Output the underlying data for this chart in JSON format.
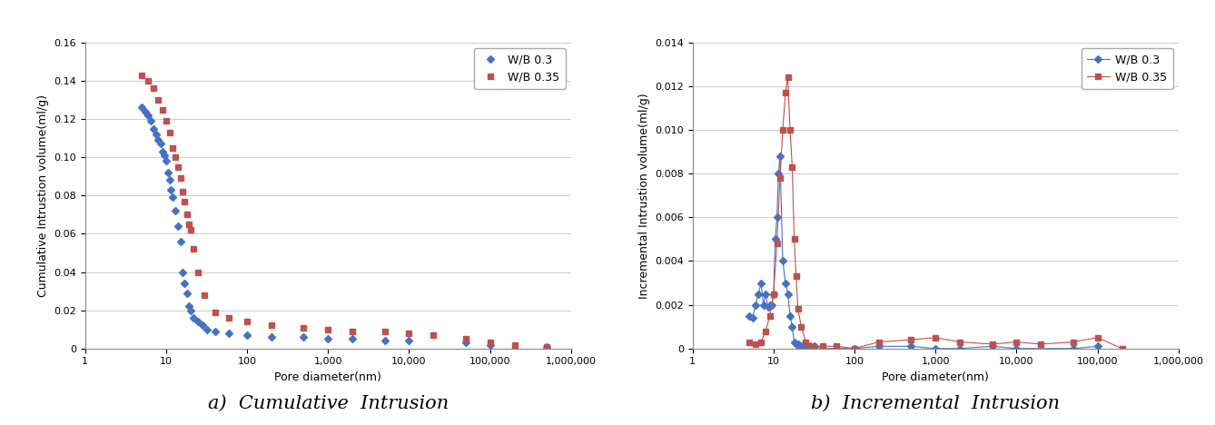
{
  "chart_a_title": "a)  Cumulative  Intrusion",
  "chart_b_title": "b)  Incremental  Intrusion",
  "xlabel": "Pore diameter(nm)",
  "ylabel_a": "Cumulative Intrustion volume(ml/g)",
  "ylabel_b": "Incremental Intrustion volume(ml/g)",
  "xlim": [
    1,
    1000000
  ],
  "ylim_a": [
    0,
    0.16
  ],
  "ylim_b": [
    0,
    0.014
  ],
  "yticks_a": [
    0,
    0.02,
    0.04,
    0.06,
    0.08,
    0.1,
    0.12,
    0.14,
    0.16
  ],
  "yticks_b": [
    0,
    0.002,
    0.004,
    0.006,
    0.008,
    0.01,
    0.012,
    0.014
  ],
  "xticks": [
    1,
    10,
    100,
    1000,
    10000,
    100000,
    1000000
  ],
  "xtick_labels": [
    "1",
    "10",
    "100",
    "1,000",
    "10,000",
    "100,000",
    "1,000,000"
  ],
  "color_03": "#4472C4",
  "color_035": "#C0504D",
  "legend_03": "W/B 0.3",
  "legend_035": "W/B 0.35",
  "wb03_cum_x": [
    5.0,
    5.5,
    6.0,
    6.5,
    7.0,
    7.5,
    8.0,
    8.5,
    9.0,
    9.5,
    10.0,
    10.5,
    11.0,
    11.5,
    12.0,
    13.0,
    14.0,
    15.0,
    16.0,
    17.0,
    18.0,
    19.0,
    20.0,
    22.0,
    25.0,
    28.0,
    32.0,
    40.0,
    60.0,
    100.0,
    200.0,
    500.0,
    1000.0,
    2000.0,
    5000.0,
    10000.0,
    50000.0,
    100000.0,
    500000.0
  ],
  "wb03_cum_y": [
    0.126,
    0.124,
    0.122,
    0.119,
    0.115,
    0.112,
    0.109,
    0.107,
    0.103,
    0.101,
    0.098,
    0.092,
    0.088,
    0.083,
    0.079,
    0.072,
    0.064,
    0.056,
    0.04,
    0.034,
    0.029,
    0.022,
    0.02,
    0.016,
    0.014,
    0.012,
    0.01,
    0.009,
    0.008,
    0.007,
    0.006,
    0.006,
    0.005,
    0.005,
    0.004,
    0.004,
    0.003,
    0.002,
    0.001
  ],
  "wb035_cum_x": [
    5.0,
    6.0,
    7.0,
    8.0,
    9.0,
    10.0,
    11.0,
    12.0,
    13.0,
    14.0,
    15.0,
    16.0,
    17.0,
    18.0,
    19.0,
    20.0,
    22.0,
    25.0,
    30.0,
    40.0,
    60.0,
    100.0,
    200.0,
    500.0,
    1000.0,
    2000.0,
    5000.0,
    10000.0,
    20000.0,
    50000.0,
    100000.0,
    200000.0,
    500000.0
  ],
  "wb035_cum_y": [
    0.143,
    0.14,
    0.136,
    0.13,
    0.125,
    0.119,
    0.113,
    0.105,
    0.1,
    0.095,
    0.089,
    0.082,
    0.077,
    0.07,
    0.065,
    0.062,
    0.052,
    0.04,
    0.028,
    0.019,
    0.016,
    0.014,
    0.012,
    0.011,
    0.01,
    0.009,
    0.009,
    0.008,
    0.007,
    0.005,
    0.003,
    0.002,
    0.001
  ],
  "wb03_inc_x": [
    5.0,
    5.5,
    6.0,
    6.5,
    7.0,
    7.5,
    8.0,
    8.5,
    9.0,
    9.5,
    10.0,
    10.5,
    11.0,
    11.5,
    12.0,
    13.0,
    14.0,
    15.0,
    16.0,
    17.0,
    18.0,
    19.0,
    20.0,
    22.0,
    25.0,
    28.0,
    32.0,
    40.0,
    60.0,
    100.0,
    200.0,
    500.0,
    1000.0,
    2000.0,
    5000.0,
    10000.0,
    50000.0,
    100000.0
  ],
  "wb03_inc_y": [
    0.0015,
    0.0014,
    0.002,
    0.0025,
    0.003,
    0.002,
    0.0025,
    0.0019,
    0.002,
    0.002,
    0.0025,
    0.005,
    0.006,
    0.008,
    0.0088,
    0.004,
    0.003,
    0.0025,
    0.0015,
    0.001,
    0.0003,
    0.0002,
    0.0002,
    0.0001,
    0.0001,
    0.0001,
    0.0001,
    0.0,
    0.0,
    0.0,
    0.0001,
    0.0001,
    0.0,
    0.0,
    0.0001,
    0.0,
    0.0,
    0.0001
  ],
  "wb035_inc_x": [
    5.0,
    6.0,
    7.0,
    8.0,
    9.0,
    10.0,
    11.0,
    12.0,
    13.0,
    14.0,
    15.0,
    16.0,
    17.0,
    18.0,
    19.0,
    20.0,
    22.0,
    25.0,
    30.0,
    40.0,
    60.0,
    100.0,
    200.0,
    500.0,
    1000.0,
    2000.0,
    5000.0,
    10000.0,
    20000.0,
    50000.0,
    100000.0,
    200000.0
  ],
  "wb035_inc_y": [
    0.0003,
    0.0002,
    0.0003,
    0.0008,
    0.0015,
    0.0025,
    0.0048,
    0.0078,
    0.01,
    0.0117,
    0.0124,
    0.01,
    0.0083,
    0.005,
    0.0033,
    0.0018,
    0.001,
    0.0003,
    0.0001,
    0.0001,
    0.0001,
    0.0,
    0.0003,
    0.0004,
    0.0005,
    0.0003,
    0.0002,
    0.0003,
    0.0002,
    0.0003,
    0.0005,
    0.0
  ],
  "bg_color": "#ffffff",
  "grid_color": "#cccccc",
  "title_fontsize": 15,
  "axis_fontsize": 9,
  "tick_fontsize": 8
}
